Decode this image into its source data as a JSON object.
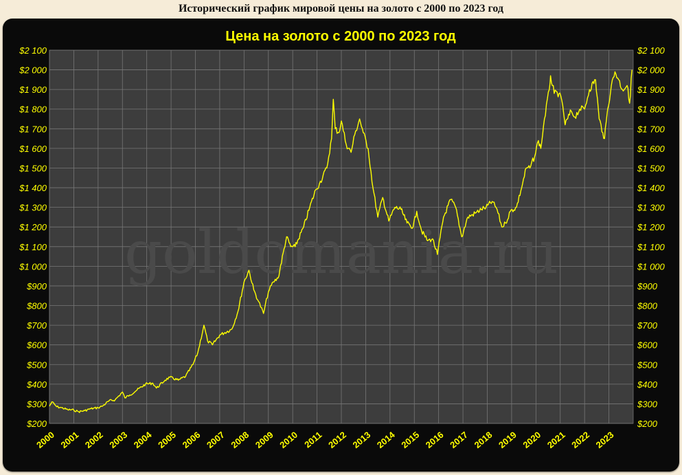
{
  "page": {
    "heading": "Исторический график мировой цены на золото с 2000 по 2023 год"
  },
  "watermark": "goldomania.ru",
  "colors": {
    "page_background": "#f6ecd8",
    "chart_frame": "#0a0a0a",
    "plot_area": "#3d3d3d",
    "grid": "#777777",
    "series_line": "#ffff00",
    "tick_labels": "#ffff00",
    "watermark": "#4a4a4a"
  },
  "chart_data": {
    "type": "line",
    "title": "Цена на золото с 2000 по 2023  год",
    "xlabel": "",
    "ylabel": "",
    "grid": true,
    "y_axes": "left and right (duplicate labels)",
    "xlim": [
      2000,
      2024
    ],
    "ylim": [
      200,
      2100
    ],
    "x_tick_labels": [
      "2000",
      "2001",
      "2002",
      "2003",
      "2004",
      "2005",
      "2006",
      "2007",
      "2008",
      "2009",
      "2010",
      "2011",
      "2012",
      "2013",
      "2014",
      "2015",
      "2016",
      "2017",
      "2018",
      "2019",
      "2020",
      "2021",
      "2022",
      "2023"
    ],
    "y_ticks": [
      200,
      300,
      400,
      500,
      600,
      700,
      800,
      900,
      1000,
      1100,
      1200,
      1300,
      1400,
      1500,
      1600,
      1700,
      1800,
      1900,
      2000,
      2100
    ],
    "y_tick_labels": [
      "$200",
      "$300",
      "$400",
      "$500",
      "$600",
      "$700",
      "$800",
      "$900",
      "$1 000",
      "$1 100",
      "$1 200",
      "$1 300",
      "$1 400",
      "$1 500",
      "$1 600",
      "$1 700",
      "$1 800",
      "$1 900",
      "$2 000",
      "$2 100"
    ],
    "series": [
      {
        "x": [
          2000.0,
          2000.1,
          2000.3,
          2000.5,
          2000.75,
          2001.0,
          2001.2,
          2001.45,
          2001.7,
          2002.0,
          2002.2,
          2002.45,
          2002.7,
          2003.0,
          2003.1,
          2003.3,
          2003.6,
          2003.95,
          2004.25,
          2004.4,
          2004.75,
          2004.95,
          2005.3,
          2005.6,
          2005.9,
          2006.1,
          2006.35,
          2006.5,
          2006.7,
          2007.0,
          2007.5,
          2007.75,
          2008.0,
          2008.2,
          2008.4,
          2008.6,
          2008.8,
          2009.0,
          2009.2,
          2009.4,
          2009.75,
          2009.92,
          2010.1,
          2010.45,
          2010.7,
          2010.95,
          2011.1,
          2011.4,
          2011.6,
          2011.67,
          2011.75,
          2011.9,
          2012.0,
          2012.2,
          2012.4,
          2012.55,
          2012.75,
          2012.9,
          2013.1,
          2013.3,
          2013.5,
          2013.7,
          2013.95,
          2014.2,
          2014.45,
          2014.7,
          2014.95,
          2015.1,
          2015.3,
          2015.55,
          2015.75,
          2015.95,
          2016.2,
          2016.5,
          2016.7,
          2016.95,
          2017.2,
          2017.5,
          2017.75,
          2017.95,
          2018.2,
          2018.4,
          2018.6,
          2018.75,
          2018.95,
          2019.2,
          2019.45,
          2019.6,
          2019.75,
          2019.95,
          2020.1,
          2020.2,
          2020.35,
          2020.55,
          2020.6,
          2020.75,
          2020.95,
          2021.1,
          2021.2,
          2021.45,
          2021.6,
          2021.8,
          2022.0,
          2022.2,
          2022.45,
          2022.6,
          2022.75,
          2022.82,
          2022.95,
          2023.1,
          2023.25,
          2023.4,
          2023.55,
          2023.75,
          2023.85,
          2023.95
        ],
        "y": [
          288,
          310,
          285,
          280,
          270,
          268,
          260,
          265,
          275,
          280,
          290,
          315,
          320,
          360,
          330,
          345,
          370,
          400,
          405,
          380,
          420,
          435,
          420,
          440,
          500,
          560,
          700,
          620,
          600,
          650,
          680,
          770,
          920,
          980,
          880,
          820,
          760,
          870,
          920,
          940,
          1150,
          1100,
          1100,
          1200,
          1300,
          1390,
          1420,
          1500,
          1650,
          1850,
          1700,
          1680,
          1740,
          1620,
          1580,
          1670,
          1750,
          1680,
          1600,
          1400,
          1250,
          1350,
          1230,
          1300,
          1290,
          1220,
          1200,
          1280,
          1180,
          1130,
          1140,
          1060,
          1250,
          1340,
          1300,
          1150,
          1250,
          1270,
          1290,
          1300,
          1330,
          1290,
          1200,
          1220,
          1280,
          1300,
          1420,
          1500,
          1500,
          1560,
          1640,
          1600,
          1750,
          1900,
          1970,
          1880,
          1880,
          1820,
          1720,
          1790,
          1760,
          1800,
          1800,
          1900,
          1950,
          1750,
          1680,
          1650,
          1800,
          1920,
          1990,
          1950,
          1900,
          1920,
          1830,
          2000
        ]
      }
    ]
  }
}
